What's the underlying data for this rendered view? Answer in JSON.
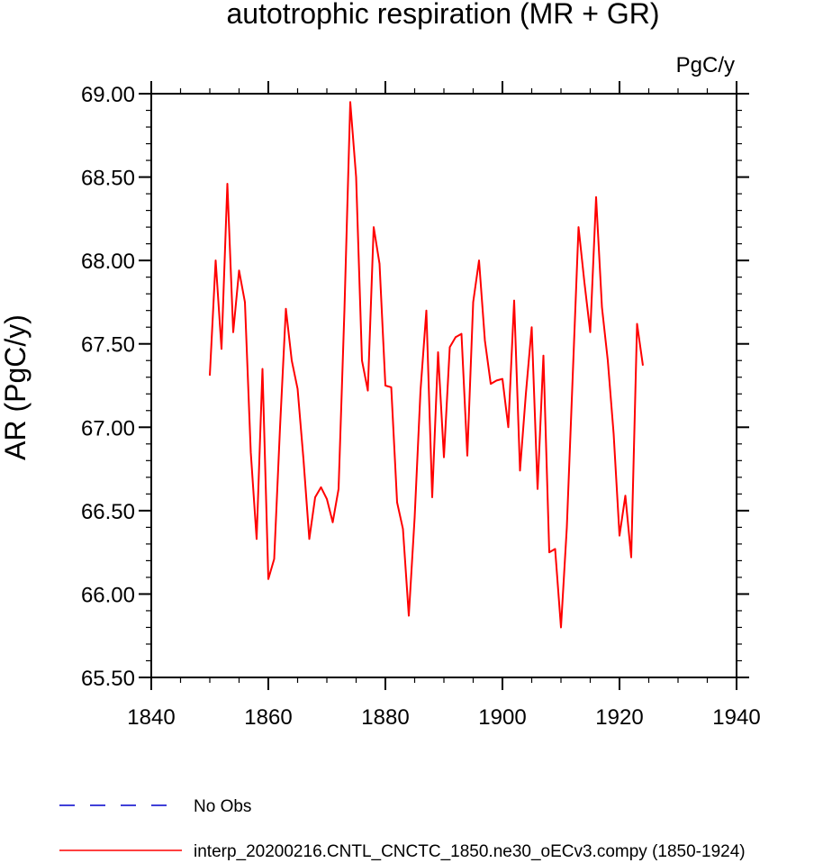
{
  "chart_data": {
    "type": "line",
    "title": "autotrophic respiration (MR + GR)",
    "units_label": "PgC/y",
    "ylabel": "AR  (PgC/y)",
    "xlabel": "",
    "xlim": [
      1840,
      1940
    ],
    "ylim": [
      65.5,
      69.0
    ],
    "xticks": [
      1840,
      1860,
      1880,
      1900,
      1920,
      1940
    ],
    "xtick_labels": [
      "1840",
      "1860",
      "1880",
      "1900",
      "1920",
      "1940"
    ],
    "yticks": [
      65.5,
      66.0,
      66.5,
      67.0,
      67.5,
      68.0,
      68.5,
      69.0
    ],
    "ytick_labels": [
      "65.50",
      "66.00",
      "66.50",
      "67.00",
      "67.50",
      "68.00",
      "68.50",
      "69.00"
    ],
    "grid": false,
    "series": [
      {
        "name": "interp_20200216.CNTL_CNCTC_1850.ne30_oECv3.compy (1850-1924)",
        "color": "#ff0000",
        "style": "solid",
        "x": [
          1850,
          1851,
          1852,
          1853,
          1854,
          1855,
          1856,
          1857,
          1858,
          1859,
          1860,
          1861,
          1862,
          1863,
          1864,
          1865,
          1866,
          1867,
          1868,
          1869,
          1870,
          1871,
          1872,
          1873,
          1874,
          1875,
          1876,
          1877,
          1878,
          1879,
          1880,
          1881,
          1882,
          1883,
          1884,
          1885,
          1886,
          1887,
          1888,
          1889,
          1890,
          1891,
          1892,
          1893,
          1894,
          1895,
          1896,
          1897,
          1898,
          1899,
          1900,
          1901,
          1902,
          1903,
          1904,
          1905,
          1906,
          1907,
          1908,
          1909,
          1910,
          1911,
          1912,
          1913,
          1914,
          1915,
          1916,
          1917,
          1918,
          1919,
          1920,
          1921,
          1922,
          1923,
          1924
        ],
        "y": [
          67.31,
          68.0,
          67.47,
          68.46,
          67.57,
          67.94,
          67.75,
          66.85,
          66.33,
          67.35,
          66.09,
          66.21,
          67.0,
          67.71,
          67.4,
          67.23,
          66.81,
          66.33,
          66.58,
          66.64,
          66.57,
          66.43,
          66.63,
          67.7,
          68.95,
          68.5,
          67.4,
          67.22,
          68.2,
          67.98,
          67.25,
          67.24,
          66.55,
          66.39,
          65.87,
          66.46,
          67.22,
          67.7,
          66.58,
          67.45,
          66.82,
          67.48,
          67.54,
          67.56,
          66.83,
          67.75,
          68.0,
          67.52,
          67.26,
          67.28,
          67.29,
          67.0,
          67.76,
          66.74,
          67.2,
          67.6,
          66.63,
          67.43,
          66.25,
          66.27,
          65.8,
          66.4,
          67.3,
          68.2,
          67.87,
          67.57,
          68.38,
          67.72,
          67.4,
          66.96,
          66.35,
          66.59,
          66.22,
          67.62,
          67.37
        ]
      }
    ],
    "legend": {
      "placement": "bottom-left",
      "entries": [
        {
          "label": "No Obs",
          "color": "#0000cc",
          "style": "dashed"
        },
        {
          "label": "interp_20200216.CNTL_CNCTC_1850.ne30_oECv3.compy (1850-1924)",
          "color": "#ff0000",
          "style": "solid"
        }
      ]
    }
  }
}
